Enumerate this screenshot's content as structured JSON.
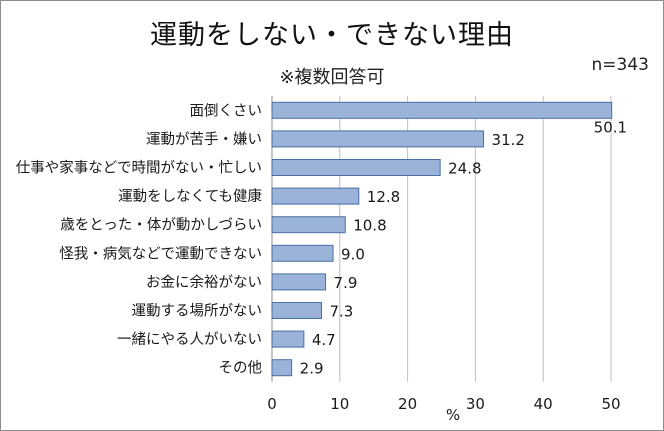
{
  "chart_data": {
    "type": "bar",
    "orientation": "horizontal",
    "title": "運動をしない・できない理由",
    "subtitle": "※複数回答可",
    "sample_size": "n=343",
    "xlabel": "%",
    "ylabel": "",
    "xlim": [
      0,
      50
    ],
    "ticks": [
      "0",
      "10",
      "20",
      "30",
      "40",
      "50"
    ],
    "grid": true,
    "legend": "none",
    "categories": [
      "面倒くさい",
      "運動が苦手・嫌い",
      "仕事や家事などで時間がない・忙しい",
      "運動をしなくても健康",
      "歳をとった・体が動かしづらい",
      "怪我・病気などで運動できない",
      "お金に余裕がない",
      "運動する場所がない",
      "一緒にやる人がいない",
      "その他"
    ],
    "values": [
      50.1,
      31.2,
      24.8,
      12.8,
      10.8,
      9.0,
      7.9,
      7.3,
      4.7,
      2.9
    ],
    "value_labels": [
      "50.1",
      "31.2",
      "24.8",
      "12.8",
      "10.8",
      "9.0",
      "7.9",
      "7.3",
      "4.7",
      "2.9"
    ],
    "bar_color": "#9bb3d9",
    "bar_border_color": "#4a6fa5",
    "grid_color": "#bfbfbf"
  }
}
